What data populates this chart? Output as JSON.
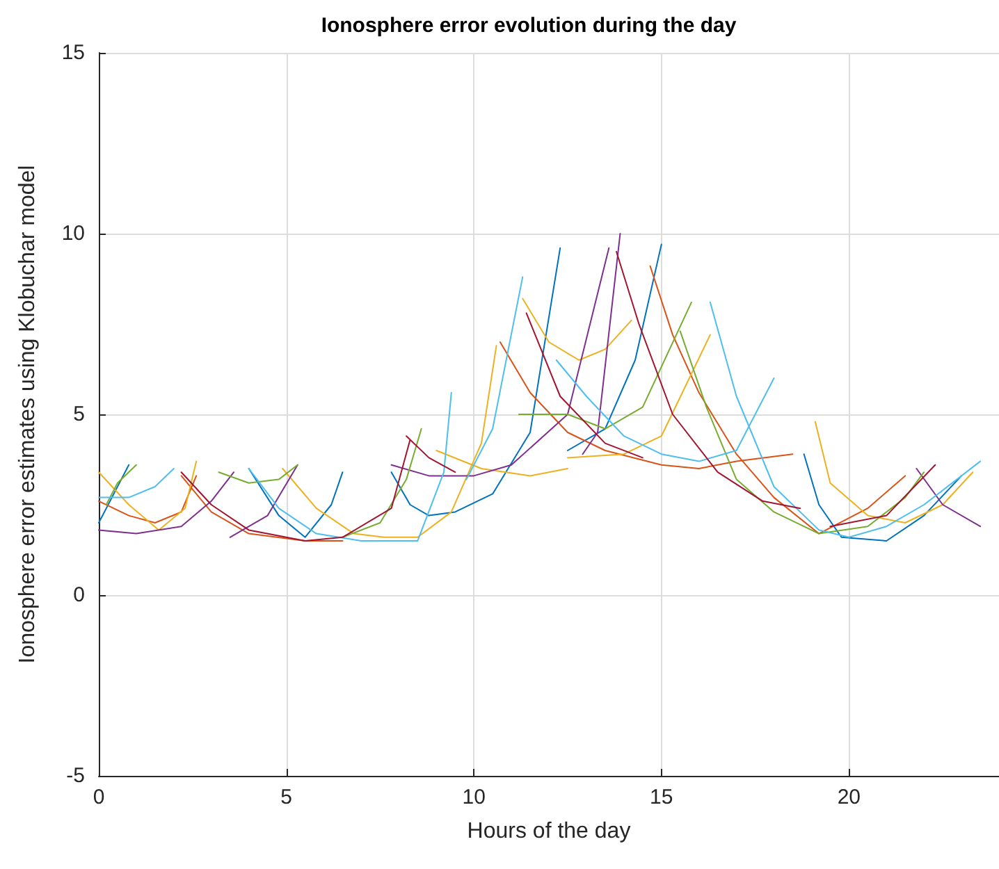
{
  "chart_data": {
    "type": "line",
    "title": "Ionosphere error evolution during the day",
    "xlabel": "Hours of the day",
    "ylabel": "Ionosphere error estimates using Klobuchar model",
    "xlim": [
      0,
      24
    ],
    "xticks": [
      0,
      5,
      10,
      15,
      20
    ],
    "ylim": [
      -5,
      15
    ],
    "yticks": [
      -5,
      0,
      5,
      10,
      15
    ],
    "grid": true,
    "marker": "none",
    "line_style": "solid",
    "series": [
      {
        "color": "#0072bd",
        "x": [
          0,
          0.4,
          0.8,
          null,
          4.0,
          4.8,
          5.5,
          6.2,
          6.5,
          null,
          7.8,
          8.3,
          8.8,
          9.5,
          10.5,
          11.5,
          12.3,
          null,
          12.5,
          13.5,
          14.3,
          15.0,
          null,
          18.8,
          19.2,
          19.8,
          21,
          22,
          23
        ],
        "values": [
          2.0,
          2.8,
          3.6,
          null,
          3.5,
          2.2,
          1.6,
          2.5,
          3.4,
          null,
          3.4,
          2.5,
          2.2,
          2.3,
          2.8,
          4.5,
          9.6,
          null,
          4.0,
          4.6,
          6.5,
          9.7,
          null,
          3.9,
          2.5,
          1.6,
          1.5,
          2.2,
          3.3
        ]
      },
      {
        "color": "#d95319",
        "x": [
          0,
          0.8,
          1.5,
          2.2,
          2.6,
          null,
          2.2,
          3.0,
          4.0,
          5.5,
          6.5,
          null,
          10.7,
          11.5,
          12.5,
          13.5,
          15.0,
          16.0,
          17,
          18.5,
          null,
          14.7,
          15.3,
          16,
          17,
          18,
          19.2,
          20.5,
          21.5
        ],
        "values": [
          2.6,
          2.2,
          2.0,
          2.3,
          3.3,
          null,
          3.3,
          2.3,
          1.7,
          1.5,
          1.5,
          null,
          7.0,
          5.6,
          4.5,
          4.0,
          3.6,
          3.5,
          3.7,
          3.9,
          null,
          9.1,
          7.2,
          5.6,
          3.9,
          2.7,
          1.7,
          2.4,
          3.3
        ]
      },
      {
        "color": "#edb120",
        "x": [
          0,
          0.8,
          1.6,
          2.3,
          2.6,
          null,
          4.9,
          5.8,
          6.8,
          7.6,
          8.5,
          9.4,
          10.2,
          10.6,
          null,
          9.0,
          10.2,
          11.5,
          12.5,
          null,
          11.3,
          12,
          12.8,
          13.5,
          14.2,
          null,
          12.5,
          14,
          15,
          16.3,
          null,
          19.1,
          19.5,
          20.5,
          21.5,
          22.5,
          23.3
        ],
        "values": [
          3.4,
          2.5,
          1.8,
          2.4,
          3.7,
          null,
          3.5,
          2.4,
          1.7,
          1.6,
          1.6,
          2.3,
          4.2,
          6.9,
          null,
          4.0,
          3.5,
          3.3,
          3.5,
          null,
          8.2,
          7.0,
          6.5,
          6.8,
          7.6,
          null,
          3.8,
          3.9,
          4.4,
          7.2,
          null,
          4.8,
          3.1,
          2.2,
          2.0,
          2.5,
          3.4
        ]
      },
      {
        "color": "#7e2f8e",
        "x": [
          0,
          1,
          2.2,
          3.0,
          3.6,
          null,
          3.5,
          4.5,
          5.3,
          null,
          7.8,
          8.8,
          10,
          11,
          12.5,
          13.6,
          null,
          12.9,
          13.3,
          13.9,
          null,
          21.8,
          22.5,
          23.5
        ],
        "values": [
          1.8,
          1.7,
          1.9,
          2.6,
          3.4,
          null,
          1.6,
          2.2,
          3.6,
          null,
          3.6,
          3.3,
          3.3,
          3.6,
          5.0,
          9.6,
          null,
          3.9,
          4.5,
          10.0,
          null,
          3.5,
          2.5,
          1.9
        ]
      },
      {
        "color": "#77ac30",
        "x": [
          0.2,
          0.5,
          1.0,
          null,
          3.2,
          4.0,
          4.8,
          5.3,
          null,
          6.5,
          7.5,
          8.2,
          8.6,
          null,
          11.2,
          12.5,
          13.5,
          14.5,
          15.8,
          null,
          15.5,
          16.2,
          17,
          18,
          19.2,
          20.5,
          21.5,
          22
        ],
        "values": [
          2.5,
          3.1,
          3.6,
          null,
          3.4,
          3.1,
          3.2,
          3.6,
          null,
          1.6,
          2.0,
          3.2,
          4.6,
          null,
          5.0,
          5.0,
          4.6,
          5.2,
          8.1,
          null,
          7.3,
          5.2,
          3.2,
          2.3,
          1.7,
          1.9,
          2.7,
          3.4
        ]
      },
      {
        "color": "#4dbeee",
        "x": [
          0,
          0.8,
          1.5,
          2.0,
          null,
          4.0,
          4.8,
          5.8,
          7,
          8.5,
          9.2,
          9.4,
          null,
          9.8,
          10.5,
          11.3,
          null,
          12.2,
          13,
          14,
          15,
          16,
          17,
          18,
          null,
          16.3,
          17,
          18,
          19.2,
          20,
          21,
          22,
          23.5
        ],
        "values": [
          2.7,
          2.7,
          3.0,
          3.5,
          null,
          3.5,
          2.4,
          1.7,
          1.5,
          1.5,
          3.4,
          5.6,
          null,
          3.2,
          4.6,
          8.8,
          null,
          6.5,
          5.5,
          4.4,
          3.9,
          3.7,
          4.0,
          6.0,
          null,
          8.1,
          5.5,
          3.0,
          1.8,
          1.6,
          1.9,
          2.5,
          3.7
        ]
      },
      {
        "color": "#a2142f",
        "x": [
          2.2,
          3,
          4.0,
          5.5,
          6.5,
          7.8,
          8.3,
          null,
          8.2,
          8.8,
          9.5,
          null,
          11.4,
          12.3,
          13.5,
          14.5,
          null,
          13.8,
          14.4,
          15.3,
          16.5,
          17.7,
          18.7,
          null,
          19.5,
          21,
          22.3
        ],
        "values": [
          3.4,
          2.5,
          1.8,
          1.5,
          1.6,
          2.4,
          4.3,
          null,
          4.4,
          3.8,
          3.4,
          null,
          7.8,
          5.5,
          4.2,
          3.8,
          null,
          9.5,
          7.5,
          5.0,
          3.4,
          2.6,
          2.4,
          null,
          1.9,
          2.2,
          3.6
        ]
      }
    ]
  }
}
